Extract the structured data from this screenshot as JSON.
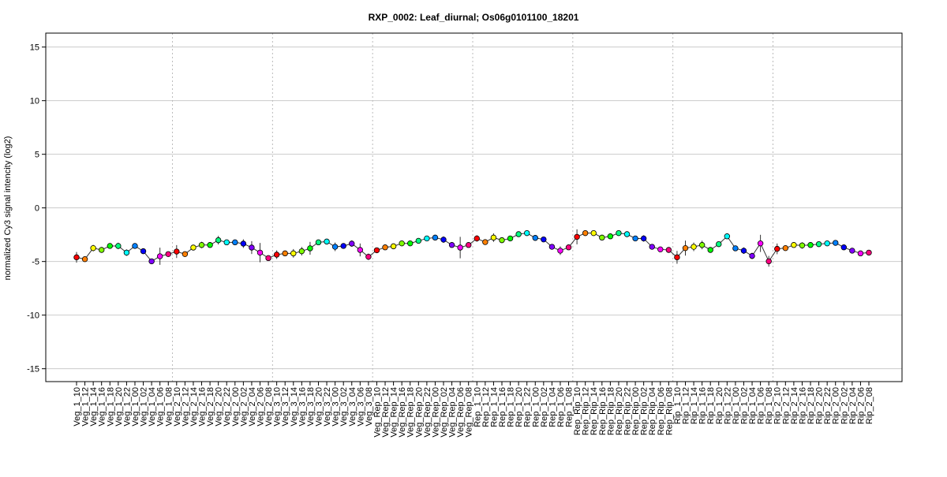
{
  "chart_data": {
    "type": "line",
    "title": "RXP_0002: Leaf_diurnal; Os06g0101100_18201",
    "xlabel": "",
    "ylabel": "normalized Cy3 signal intencity (log2)",
    "ylim": [
      -16.2,
      16.3
    ],
    "yticks": [
      -15,
      -10,
      -5,
      0,
      5,
      10,
      15
    ],
    "grid": "horizontal",
    "groups": [
      "Veg_1",
      "Veg_2",
      "Veg_3",
      "Veg_Rep",
      "Rep_1",
      "Rep_Rip",
      "Rip_1",
      "Rip_2"
    ],
    "times": [
      "10",
      "12",
      "14",
      "16",
      "18",
      "20",
      "22",
      "00",
      "02",
      "04",
      "06",
      "08"
    ],
    "point_colors": [
      "#FF0000",
      "#FF8000",
      "#FFFF00",
      "#80FF00",
      "#00FF00",
      "#00FF80",
      "#00FFFF",
      "#0080FF",
      "#0000FF",
      "#8000FF",
      "#FF00FF",
      "#FF0080"
    ],
    "values": [
      -4.61,
      -4.78,
      -3.75,
      -3.92,
      -3.55,
      -3.55,
      -4.17,
      -3.55,
      -4.04,
      -4.98,
      -4.51,
      -4.31,
      -4.07,
      -4.31,
      -3.7,
      -3.46,
      -3.46,
      -3.01,
      -3.21,
      -3.21,
      -3.33,
      -3.7,
      -4.17,
      -4.68,
      -4.36,
      -4.24,
      -4.24,
      -4.04,
      -3.77,
      -3.21,
      -3.14,
      -3.63,
      -3.55,
      -3.33,
      -3.92,
      -4.56,
      -3.95,
      -3.68,
      -3.58,
      -3.31,
      -3.31,
      -3.07,
      -2.85,
      -2.77,
      -2.96,
      -3.46,
      -3.7,
      -3.46,
      -2.85,
      -3.19,
      -2.77,
      -3.01,
      -2.85,
      -2.45,
      -2.35,
      -2.8,
      -2.94,
      -3.63,
      -3.99,
      -3.68,
      -2.7,
      -2.35,
      -2.35,
      -2.77,
      -2.65,
      -2.35,
      -2.45,
      -2.85,
      -2.85,
      -3.63,
      -3.87,
      -3.92,
      -4.61,
      -3.75,
      -3.63,
      -3.46,
      -3.92,
      -3.38,
      -2.65,
      -3.77,
      -3.99,
      -4.48,
      -3.31,
      -4.98,
      -3.82,
      -3.75,
      -3.46,
      -3.5,
      -3.46,
      -3.38,
      -3.31,
      -3.26,
      -3.68,
      -3.99,
      -4.24,
      -4.17
    ],
    "errors": [
      0.5,
      0.1,
      0.3,
      0.1,
      0.1,
      0.3,
      0.3,
      0.1,
      0.1,
      0.1,
      0.8,
      0.1,
      0.6,
      0.1,
      0.1,
      0.3,
      0.2,
      0.4,
      0.1,
      0.1,
      0.4,
      0.6,
      0.9,
      0.2,
      0.4,
      0.1,
      0.4,
      0.4,
      0.6,
      0.1,
      0.1,
      0.4,
      0.1,
      0.3,
      0.6,
      0.3,
      0.1,
      0.1,
      0.1,
      0.1,
      0.1,
      0.1,
      0.1,
      0.1,
      0.3,
      0.1,
      1.0,
      0.1,
      0.3,
      0.1,
      0.4,
      0.1,
      0.2,
      0.1,
      0.1,
      0.1,
      0.1,
      0.1,
      0.4,
      0.1,
      0.7,
      0.1,
      0.1,
      0.1,
      0.1,
      0.1,
      0.1,
      0.1,
      0.3,
      0.1,
      0.1,
      0.1,
      0.6,
      0.7,
      0.4,
      0.4,
      0.1,
      0.1,
      0.1,
      0.1,
      0.3,
      0.3,
      0.8,
      0.5,
      0.5,
      0.1,
      0.1,
      0.3,
      0.1,
      0.1,
      0.1,
      0.1,
      0.1,
      0.1,
      0.1,
      0.1
    ]
  }
}
